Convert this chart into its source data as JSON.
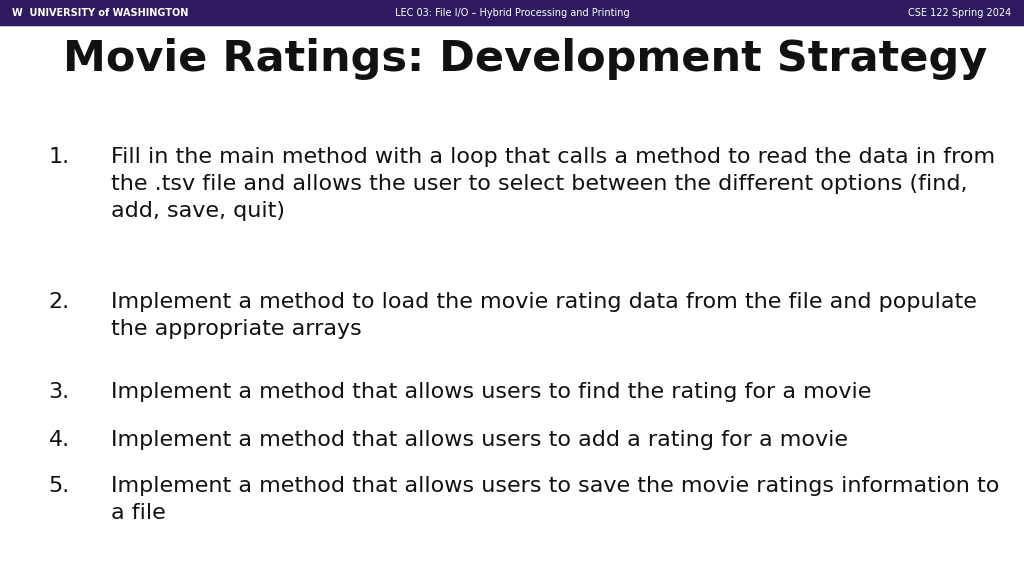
{
  "header_bg": "#2E1A5E",
  "header_text_color": "#FFFFFF",
  "header_left": "W  UNIVERSITY of WASHINGTON",
  "header_center": "LEC 03: File I/O – Hybrid Processing and Printing",
  "header_right": "CSE 122 Spring 2024",
  "bg_color": "#FFFFFF",
  "title": "Movie Ratings: Development Strategy",
  "title_color": "#111111",
  "title_fontsize": 31,
  "body_color": "#111111",
  "body_fontsize": 16,
  "header_fontsize": 7,
  "items": [
    {
      "number": "1.",
      "text": "Fill in the main method with a loop that calls a method to read the data in from\nthe .tsv file and allows the user to select between the different options (find,\nadd, save, quit)"
    },
    {
      "number": "2.",
      "text": "Implement a method to load the movie rating data from the file and populate\nthe appropriate arrays"
    },
    {
      "number": "3.",
      "text": "Implement a method that allows users to find the rating for a movie"
    },
    {
      "number": "4.",
      "text": "Implement a method that allows users to add a rating for a movie"
    },
    {
      "number": "5.",
      "text": "Implement a method that allows users to save the movie ratings information to\na file"
    }
  ]
}
